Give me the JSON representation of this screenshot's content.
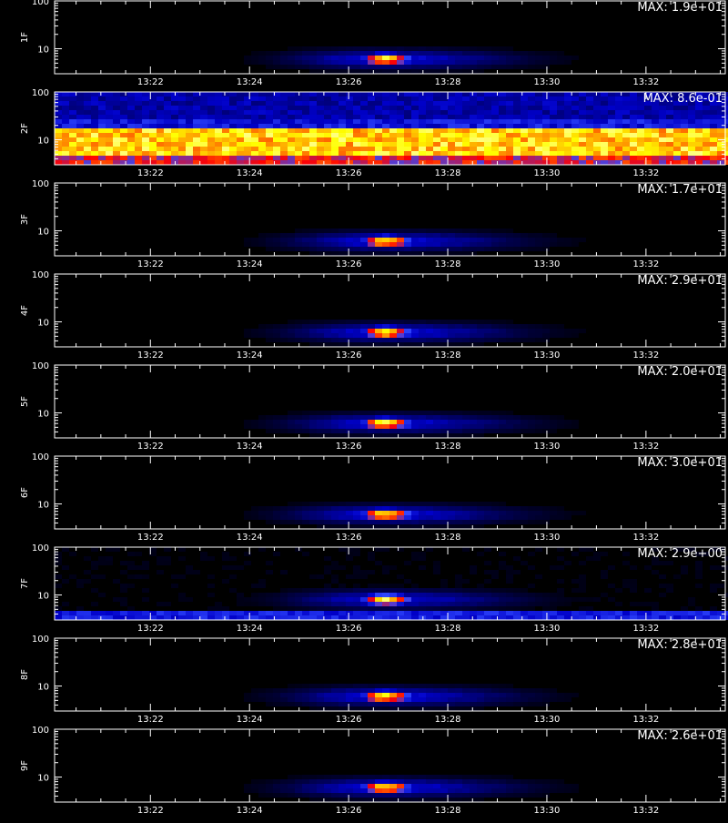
{
  "colors": {
    "background": "#000000",
    "axis": "#ffffff",
    "colormap": [
      "#000000",
      "#000060",
      "#0000c8",
      "#3048ff",
      "#ff0000",
      "#ff8a00",
      "#ffff00",
      "#ffffff"
    ]
  },
  "chart_data": [
    {
      "type": "heatmap",
      "ylabel": "1F",
      "max_label": "MAX: 1.9e+01",
      "max": 19.0,
      "x_ticks": [
        "13:22",
        "13:24",
        "13:26",
        "13:28",
        "13:30",
        "13:32"
      ],
      "y_ticks": [
        "10",
        "100"
      ],
      "y_scale": "log",
      "xlim": [
        "13:20:04",
        "13:33:36"
      ],
      "ylim": [
        3,
        100
      ],
      "events": [
        {
          "t_peak": "13:26:42",
          "t_start": "13:23:40",
          "t_end": "13:30:24",
          "y_center": 6,
          "peak": 19.0
        }
      ],
      "background": "none"
    },
    {
      "type": "heatmap",
      "ylabel": "2F",
      "max_label": "MAX: 8.6e-01",
      "max": 0.86,
      "x_ticks": [
        "13:22",
        "13:24",
        "13:26",
        "13:28",
        "13:30",
        "13:32"
      ],
      "y_ticks": [
        "10",
        "100"
      ],
      "y_scale": "log",
      "xlim": [
        "13:20:04",
        "13:33:36"
      ],
      "ylim": [
        3,
        100
      ],
      "events": [],
      "background": "broadband noise across full time range; strongest at ~8-15, moderate at 3-5 and 30-100"
    },
    {
      "type": "heatmap",
      "ylabel": "3F",
      "max_label": "MAX: 1.7e+01",
      "max": 17.0,
      "x_ticks": [
        "13:22",
        "13:24",
        "13:26",
        "13:28",
        "13:30",
        "13:32"
      ],
      "y_ticks": [
        "10",
        "100"
      ],
      "y_scale": "log",
      "xlim": [
        "13:20:04",
        "13:33:36"
      ],
      "ylim": [
        3,
        100
      ],
      "events": [
        {
          "t_peak": "13:26:42",
          "t_start": "13:23:40",
          "t_end": "13:30:24",
          "y_center": 6,
          "peak": 17.0
        }
      ],
      "background": "none"
    },
    {
      "type": "heatmap",
      "ylabel": "4F",
      "max_label": "MAX: 2.9e+01",
      "max": 29.0,
      "x_ticks": [
        "13:22",
        "13:24",
        "13:26",
        "13:28",
        "13:30",
        "13:32"
      ],
      "y_ticks": [
        "10",
        "100"
      ],
      "y_scale": "log",
      "xlim": [
        "13:20:04",
        "13:33:36"
      ],
      "ylim": [
        3,
        100
      ],
      "events": [
        {
          "t_peak": "13:26:42",
          "t_start": "13:23:40",
          "t_end": "13:30:24",
          "y_center": 6,
          "peak": 29.0
        }
      ],
      "background": "none"
    },
    {
      "type": "heatmap",
      "ylabel": "5F",
      "max_label": "MAX: 2.0e+01",
      "max": 20.0,
      "x_ticks": [
        "13:22",
        "13:24",
        "13:26",
        "13:28",
        "13:30",
        "13:32"
      ],
      "y_ticks": [
        "10",
        "100"
      ],
      "y_scale": "log",
      "xlim": [
        "13:20:04",
        "13:33:36"
      ],
      "ylim": [
        3,
        100
      ],
      "events": [
        {
          "t_peak": "13:26:42",
          "t_start": "13:23:40",
          "t_end": "13:30:24",
          "y_center": 6,
          "peak": 20.0
        }
      ],
      "background": "none"
    },
    {
      "type": "heatmap",
      "ylabel": "6F",
      "max_label": "MAX: 3.0e+01",
      "max": 30.0,
      "x_ticks": [
        "13:22",
        "13:24",
        "13:26",
        "13:28",
        "13:30",
        "13:32"
      ],
      "y_ticks": [
        "10",
        "100"
      ],
      "y_scale": "log",
      "xlim": [
        "13:20:04",
        "13:33:36"
      ],
      "ylim": [
        3,
        100
      ],
      "events": [
        {
          "t_peak": "13:26:42",
          "t_start": "13:23:40",
          "t_end": "13:30:24",
          "y_center": 6,
          "peak": 30.0
        }
      ],
      "background": "none"
    },
    {
      "type": "heatmap",
      "ylabel": "7F",
      "max_label": "MAX: 2.9e+00",
      "max": 2.9,
      "x_ticks": [
        "13:22",
        "13:24",
        "13:26",
        "13:28",
        "13:30",
        "13:32"
      ],
      "y_ticks": [
        "10",
        "100"
      ],
      "y_scale": "log",
      "xlim": [
        "13:20:04",
        "13:33:36"
      ],
      "ylim": [
        3,
        100
      ],
      "events": [
        {
          "t_peak": "13:26:42",
          "t_start": "13:23:40",
          "t_end": "13:30:24",
          "y_center": 8,
          "peak": 2.9
        }
      ],
      "background": "low-level noise band at lowest energies (~3-4) across full time range"
    },
    {
      "type": "heatmap",
      "ylabel": "8F",
      "max_label": "MAX: 2.8e+01",
      "max": 28.0,
      "x_ticks": [
        "13:22",
        "13:24",
        "13:26",
        "13:28",
        "13:30",
        "13:32"
      ],
      "y_ticks": [
        "10",
        "100"
      ],
      "y_scale": "log",
      "xlim": [
        "13:20:04",
        "13:33:36"
      ],
      "ylim": [
        3,
        100
      ],
      "events": [
        {
          "t_peak": "13:26:42",
          "t_start": "13:23:40",
          "t_end": "13:30:24",
          "y_center": 6,
          "peak": 28.0
        }
      ],
      "background": "none"
    },
    {
      "type": "heatmap",
      "ylabel": "9F",
      "max_label": "MAX: 2.6e+01",
      "max": 26.0,
      "x_ticks": [
        "13:22",
        "13:24",
        "13:26",
        "13:28",
        "13:30",
        "13:32"
      ],
      "y_ticks": [
        "10",
        "100"
      ],
      "y_scale": "log",
      "xlim": [
        "13:20:04",
        "13:33:36"
      ],
      "ylim": [
        3,
        100
      ],
      "events": [
        {
          "t_peak": "13:26:42",
          "t_start": "13:23:40",
          "t_end": "13:30:24",
          "y_center": 6,
          "peak": 26.0
        }
      ],
      "background": "none"
    }
  ]
}
